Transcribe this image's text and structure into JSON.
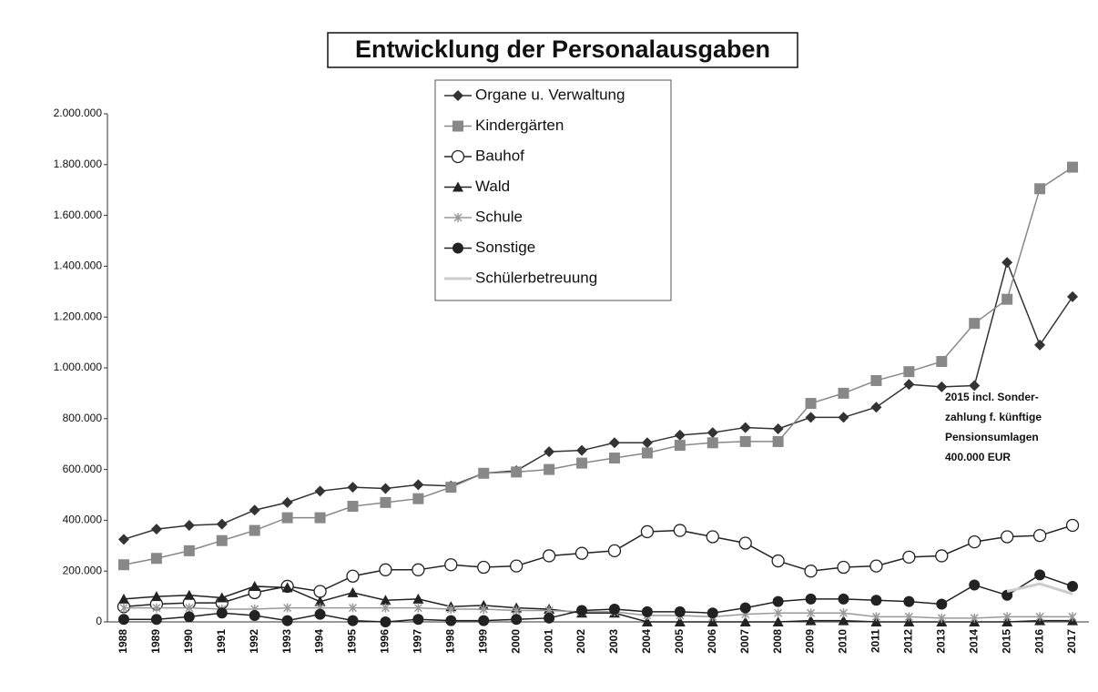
{
  "chart_data": {
    "type": "line",
    "title": "Entwicklung der Personalausgaben",
    "categories": [
      "1988",
      "1989",
      "1990",
      "1991",
      "1992",
      "1993",
      "1994",
      "1995",
      "1996",
      "1997",
      "1998",
      "1999",
      "2000",
      "2001",
      "2002",
      "2003",
      "2004",
      "2005",
      "2006",
      "2007",
      "2008",
      "2009",
      "2010",
      "2011",
      "2012",
      "2013",
      "2014",
      "2015",
      "2016",
      "2017"
    ],
    "series": [
      {
        "name": "Organe u. Verwaltung",
        "color": "#333333",
        "marker": "diamond",
        "values": [
          325000,
          365000,
          380000,
          385000,
          440000,
          470000,
          515000,
          530000,
          525000,
          540000,
          535000,
          585000,
          595000,
          670000,
          675000,
          705000,
          705000,
          735000,
          745000,
          765000,
          760000,
          805000,
          805000,
          845000,
          935000,
          925000,
          930000,
          1415000,
          1090000,
          1280000
        ]
      },
      {
        "name": "Kindergärten",
        "color": "#888888",
        "marker": "square",
        "values": [
          225000,
          250000,
          280000,
          320000,
          360000,
          410000,
          410000,
          455000,
          470000,
          485000,
          530000,
          585000,
          590000,
          600000,
          625000,
          645000,
          665000,
          695000,
          705000,
          710000,
          710000,
          860000,
          900000,
          950000,
          985000,
          1025000,
          1175000,
          1270000,
          1705000,
          1790000
        ]
      },
      {
        "name": "Bauhof",
        "color": "#222222",
        "marker": "circle-open",
        "values": [
          60000,
          70000,
          75000,
          75000,
          115000,
          140000,
          120000,
          180000,
          205000,
          205000,
          225000,
          215000,
          220000,
          260000,
          270000,
          280000,
          355000,
          360000,
          335000,
          310000,
          240000,
          200000,
          215000,
          220000,
          255000,
          260000,
          315000,
          335000,
          340000,
          380000
        ]
      },
      {
        "name": "Wald",
        "color": "#222222",
        "marker": "triangle",
        "values": [
          90000,
          100000,
          105000,
          95000,
          140000,
          135000,
          80000,
          115000,
          85000,
          90000,
          60000,
          65000,
          55000,
          50000,
          35000,
          35000,
          0,
          0,
          0,
          0,
          0,
          5000,
          5000,
          0,
          0,
          0,
          0,
          0,
          5000,
          5000
        ]
      },
      {
        "name": "Schule",
        "color": "#999999",
        "marker": "star",
        "values": [
          55000,
          55000,
          55000,
          50000,
          50000,
          55000,
          55000,
          55000,
          55000,
          55000,
          50000,
          50000,
          45000,
          45000,
          40000,
          40000,
          25000,
          25000,
          20000,
          30000,
          35000,
          35000,
          35000,
          20000,
          20000,
          15000,
          15000,
          20000,
          20000,
          20000
        ]
      },
      {
        "name": "Sonstige",
        "color": "#222222",
        "marker": "circle",
        "values": [
          10000,
          10000,
          20000,
          35000,
          25000,
          5000,
          30000,
          5000,
          0,
          10000,
          5000,
          5000,
          10000,
          15000,
          45000,
          50000,
          40000,
          40000,
          35000,
          55000,
          80000,
          90000,
          90000,
          85000,
          80000,
          70000,
          145000,
          105000,
          185000,
          140000
        ]
      },
      {
        "name": "Schülerbetreuung",
        "color": "#cccccc",
        "marker": "none",
        "values": [
          null,
          null,
          null,
          null,
          null,
          null,
          null,
          null,
          null,
          null,
          null,
          null,
          null,
          null,
          null,
          null,
          null,
          null,
          null,
          null,
          null,
          null,
          null,
          null,
          null,
          null,
          null,
          120000,
          150000,
          110000
        ]
      }
    ],
    "ylim": [
      0,
      2000000
    ],
    "yticks": [
      0,
      {
        "value": 200000,
        "label": "200.000"
      },
      {
        "value": 400000,
        "label": "400.000"
      },
      {
        "value": 600000,
        "label": "600.000"
      },
      {
        "value": 800000,
        "label": "800.000"
      },
      {
        "value": 1000000,
        "label": "1.000.000"
      },
      {
        "value": 1200000,
        "label": "1.200.000"
      },
      {
        "value": 1400000,
        "label": "1.400.000"
      },
      {
        "value": 1600000,
        "label": "1.600.000"
      },
      {
        "value": 1800000,
        "label": "1.800.000"
      },
      {
        "value": 2000000,
        "label": "2.000.000"
      }
    ],
    "annotations": [
      "2015 incl. Sonder-",
      "zahlung f. künftige",
      "Pensionsumlagen",
      "400.000 EUR"
    ],
    "grid": false
  }
}
